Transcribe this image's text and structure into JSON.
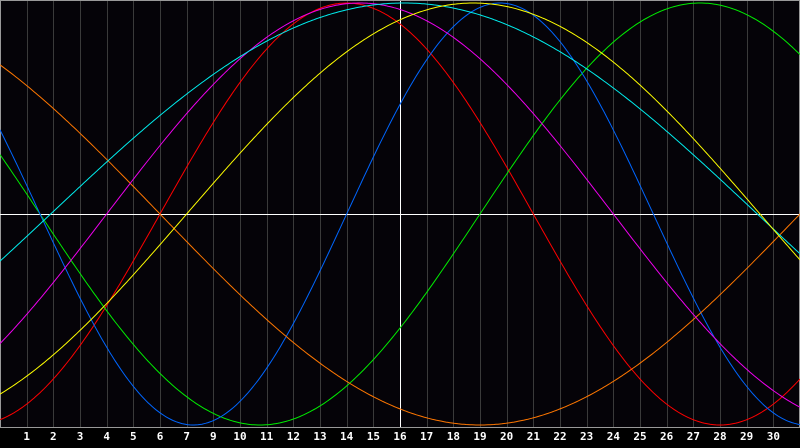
{
  "chart_data": {
    "type": "line",
    "xlim": [
      0,
      30
    ],
    "ylim": [
      -1,
      1
    ],
    "grid": true,
    "center_line_x": 15,
    "tick_labels": [
      "1",
      "2",
      "3",
      "4",
      "5",
      "6",
      "7",
      "9",
      "10",
      "11",
      "12",
      "13",
      "14",
      "15",
      "16",
      "17",
      "18",
      "19",
      "20",
      "21",
      "22",
      "23",
      "24",
      "25",
      "26",
      "27",
      "28",
      "29",
      "30"
    ],
    "background": "#050308",
    "series": [
      {
        "color": "#ff0000",
        "period": 28,
        "ascending_zero": 6.0
      },
      {
        "color": "#00ee00",
        "period": 33,
        "ascending_zero": 18.0
      },
      {
        "color": "#0066ff",
        "period": 23,
        "ascending_zero": 13.0
      },
      {
        "color": "#ff7700",
        "period": 48,
        "ascending_zero": 30.0
      },
      {
        "color": "#ee00ee",
        "period": 38,
        "ascending_zero": 4.0
      },
      {
        "color": "#00eeee",
        "period": 53,
        "ascending_zero": 1.9
      },
      {
        "color": "#ffff00",
        "period": 43,
        "ascending_zero": 7.0
      }
    ]
  }
}
